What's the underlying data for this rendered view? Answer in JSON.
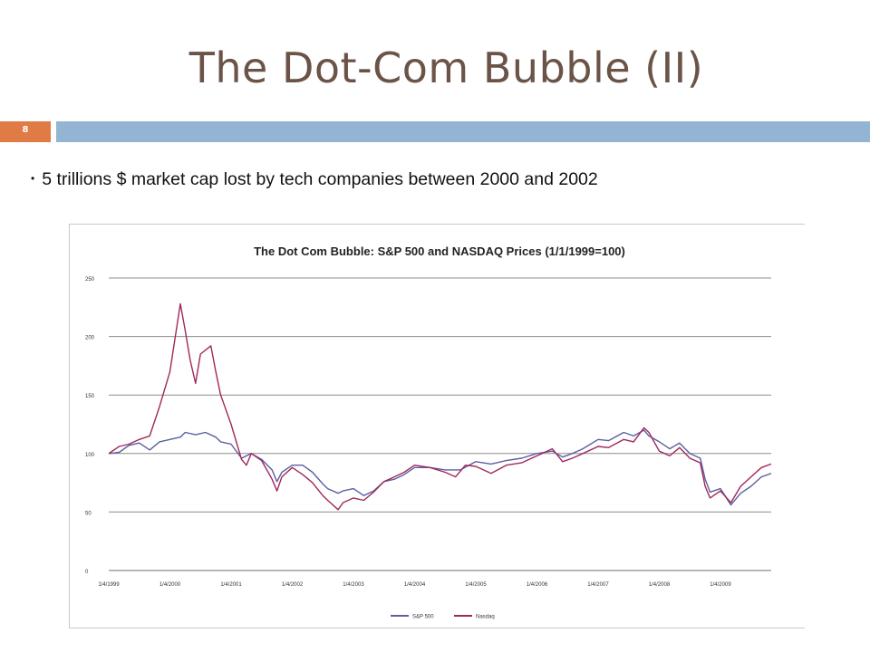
{
  "slide": {
    "title": "The Dot-Com Bubble (II)",
    "number": "8",
    "bullet": "5 trillions $ market cap lost by tech companies between 2000 and 2002"
  },
  "colors": {
    "title": "#6b5347",
    "number_box": "#e07b45",
    "band": "#93b4d2",
    "sp500": "#5a5fa0",
    "nasdaq": "#a0285a",
    "gridline": "#8c8c8c"
  },
  "chart_data": {
    "type": "line",
    "title": "The Dot Com Bubble: S&P 500 and NASDAQ Prices (1/1/1999=100)",
    "xlabel": "",
    "ylabel": "",
    "ylim": [
      0,
      250
    ],
    "yticks": [
      0,
      50,
      100,
      150,
      200,
      250
    ],
    "ytick_labels": [
      "0",
      "50",
      "100",
      "150",
      "200",
      "250"
    ],
    "xlim": [
      1999.0,
      2009.83
    ],
    "xticks": [
      1999.0,
      2000.0,
      2001.0,
      2002.0,
      2003.0,
      2004.0,
      2005.0,
      2006.0,
      2007.0,
      2008.0,
      2009.0
    ],
    "xtick_labels": [
      "1/4/1999",
      "1/4/2000",
      "1/4/2001",
      "1/4/2002",
      "1/4/2003",
      "1/4/2004",
      "1/4/2005",
      "1/4/2006",
      "1/4/2007",
      "1/4/2008",
      "1/4/2009"
    ],
    "grid": true,
    "legend": "bottom",
    "series": [
      {
        "name": "S&P 500",
        "color": "#5a5fa0",
        "points": [
          [
            1999.0,
            100
          ],
          [
            1999.17,
            101
          ],
          [
            1999.33,
            107
          ],
          [
            1999.5,
            109
          ],
          [
            1999.67,
            103
          ],
          [
            1999.83,
            110
          ],
          [
            2000.0,
            112
          ],
          [
            2000.17,
            114
          ],
          [
            2000.25,
            118
          ],
          [
            2000.42,
            116
          ],
          [
            2000.58,
            118
          ],
          [
            2000.75,
            114
          ],
          [
            2000.83,
            110
          ],
          [
            2001.0,
            108
          ],
          [
            2001.17,
            96
          ],
          [
            2001.33,
            100
          ],
          [
            2001.5,
            95
          ],
          [
            2001.67,
            86
          ],
          [
            2001.75,
            76
          ],
          [
            2001.83,
            84
          ],
          [
            2002.0,
            90
          ],
          [
            2002.17,
            90
          ],
          [
            2002.33,
            84
          ],
          [
            2002.5,
            74
          ],
          [
            2002.58,
            70
          ],
          [
            2002.75,
            66
          ],
          [
            2002.83,
            68
          ],
          [
            2003.0,
            70
          ],
          [
            2003.17,
            64
          ],
          [
            2003.33,
            68
          ],
          [
            2003.5,
            76
          ],
          [
            2003.67,
            78
          ],
          [
            2003.83,
            82
          ],
          [
            2004.0,
            88
          ],
          [
            2004.25,
            88
          ],
          [
            2004.5,
            86
          ],
          [
            2004.75,
            86
          ],
          [
            2005.0,
            93
          ],
          [
            2005.25,
            91
          ],
          [
            2005.5,
            94
          ],
          [
            2005.75,
            96
          ],
          [
            2006.0,
            100
          ],
          [
            2006.25,
            102
          ],
          [
            2006.42,
            97
          ],
          [
            2006.58,
            100
          ],
          [
            2006.75,
            104
          ],
          [
            2007.0,
            112
          ],
          [
            2007.17,
            111
          ],
          [
            2007.42,
            118
          ],
          [
            2007.58,
            115
          ],
          [
            2007.75,
            120
          ],
          [
            2007.83,
            115
          ],
          [
            2008.0,
            110
          ],
          [
            2008.17,
            104
          ],
          [
            2008.33,
            109
          ],
          [
            2008.5,
            100
          ],
          [
            2008.67,
            96
          ],
          [
            2008.75,
            78
          ],
          [
            2008.83,
            67
          ],
          [
            2009.0,
            70
          ],
          [
            2009.17,
            56
          ],
          [
            2009.33,
            66
          ],
          [
            2009.5,
            72
          ],
          [
            2009.67,
            80
          ],
          [
            2009.83,
            83
          ]
        ]
      },
      {
        "name": "Nasdaq",
        "color": "#a0285a",
        "points": [
          [
            1999.0,
            100
          ],
          [
            1999.17,
            106
          ],
          [
            1999.33,
            108
          ],
          [
            1999.5,
            112
          ],
          [
            1999.67,
            115
          ],
          [
            1999.83,
            140
          ],
          [
            2000.0,
            170
          ],
          [
            2000.17,
            228
          ],
          [
            2000.25,
            205
          ],
          [
            2000.33,
            180
          ],
          [
            2000.42,
            160
          ],
          [
            2000.5,
            185
          ],
          [
            2000.67,
            192
          ],
          [
            2000.75,
            170
          ],
          [
            2000.83,
            150
          ],
          [
            2001.0,
            125
          ],
          [
            2001.17,
            95
          ],
          [
            2001.25,
            90
          ],
          [
            2001.33,
            100
          ],
          [
            2001.5,
            94
          ],
          [
            2001.67,
            78
          ],
          [
            2001.75,
            68
          ],
          [
            2001.83,
            80
          ],
          [
            2002.0,
            88
          ],
          [
            2002.17,
            82
          ],
          [
            2002.33,
            75
          ],
          [
            2002.5,
            64
          ],
          [
            2002.58,
            60
          ],
          [
            2002.75,
            52
          ],
          [
            2002.83,
            58
          ],
          [
            2003.0,
            62
          ],
          [
            2003.17,
            60
          ],
          [
            2003.33,
            67
          ],
          [
            2003.5,
            76
          ],
          [
            2003.67,
            80
          ],
          [
            2003.83,
            84
          ],
          [
            2004.0,
            90
          ],
          [
            2004.25,
            88
          ],
          [
            2004.5,
            84
          ],
          [
            2004.67,
            80
          ],
          [
            2004.83,
            90
          ],
          [
            2005.0,
            89
          ],
          [
            2005.25,
            83
          ],
          [
            2005.5,
            90
          ],
          [
            2005.75,
            92
          ],
          [
            2006.0,
            98
          ],
          [
            2006.25,
            104
          ],
          [
            2006.42,
            93
          ],
          [
            2006.58,
            96
          ],
          [
            2006.75,
            100
          ],
          [
            2007.0,
            106
          ],
          [
            2007.17,
            105
          ],
          [
            2007.42,
            112
          ],
          [
            2007.58,
            110
          ],
          [
            2007.75,
            122
          ],
          [
            2007.83,
            118
          ],
          [
            2008.0,
            102
          ],
          [
            2008.17,
            98
          ],
          [
            2008.33,
            105
          ],
          [
            2008.5,
            96
          ],
          [
            2008.67,
            92
          ],
          [
            2008.75,
            72
          ],
          [
            2008.83,
            62
          ],
          [
            2009.0,
            68
          ],
          [
            2009.17,
            58
          ],
          [
            2009.33,
            72
          ],
          [
            2009.5,
            80
          ],
          [
            2009.67,
            88
          ],
          [
            2009.83,
            91
          ]
        ]
      }
    ]
  }
}
